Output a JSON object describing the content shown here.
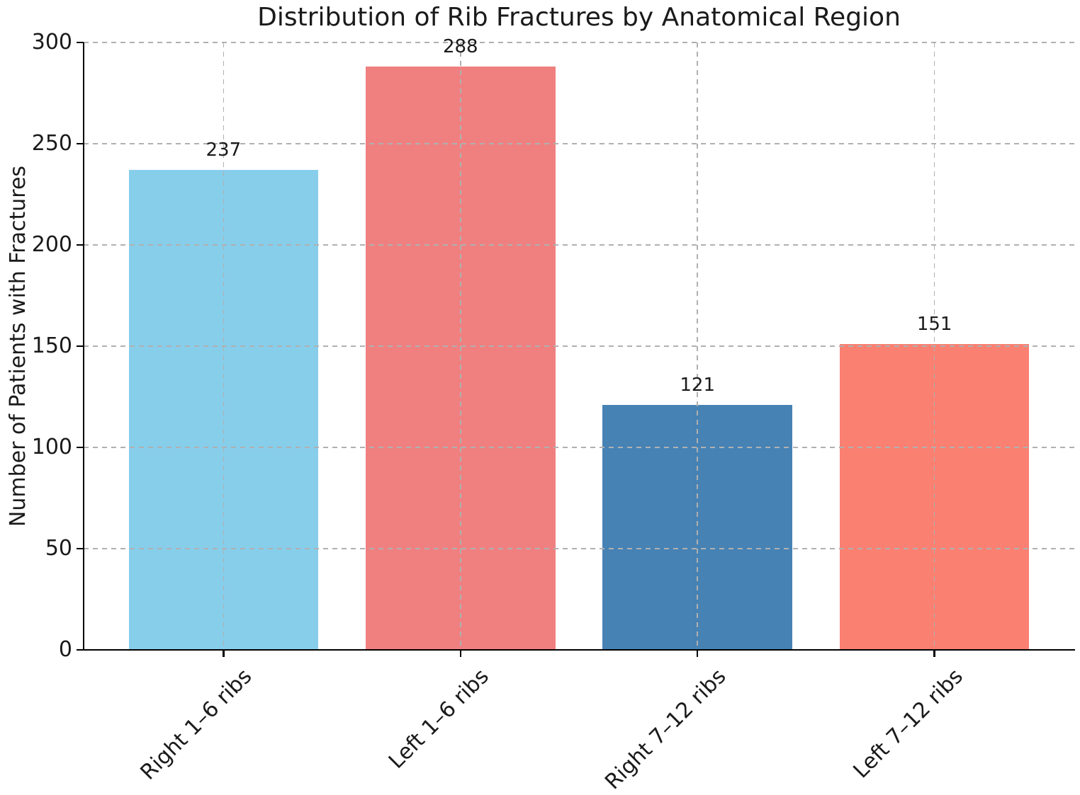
{
  "chart_data": {
    "type": "bar",
    "title": "Distribution of Rib Fractures by Anatomical Region",
    "xlabel": "",
    "ylabel": "Number of Patients with Fractures",
    "categories": [
      "Right 1–6 ribs",
      "Left 1–6 ribs",
      "Right 7–12 ribs",
      "Left 7–12 ribs"
    ],
    "values": [
      237,
      288,
      121,
      151
    ],
    "value_labels": [
      "237",
      "288",
      "121",
      "151"
    ],
    "bar_colors": [
      "#87CEEB",
      "#F08080",
      "#4682B4",
      "#FA8072"
    ],
    "ylim": [
      0,
      300
    ],
    "yticks": [
      0,
      50,
      100,
      150,
      200,
      250,
      300
    ],
    "grid": true,
    "grid_axis": "both",
    "grid_style": "dashed",
    "grid_color": "#b0b0b0",
    "x_tick_rotation_deg": 45,
    "legend": "none",
    "text_color": "#1a1a1a",
    "axis_color": "#000000"
  }
}
